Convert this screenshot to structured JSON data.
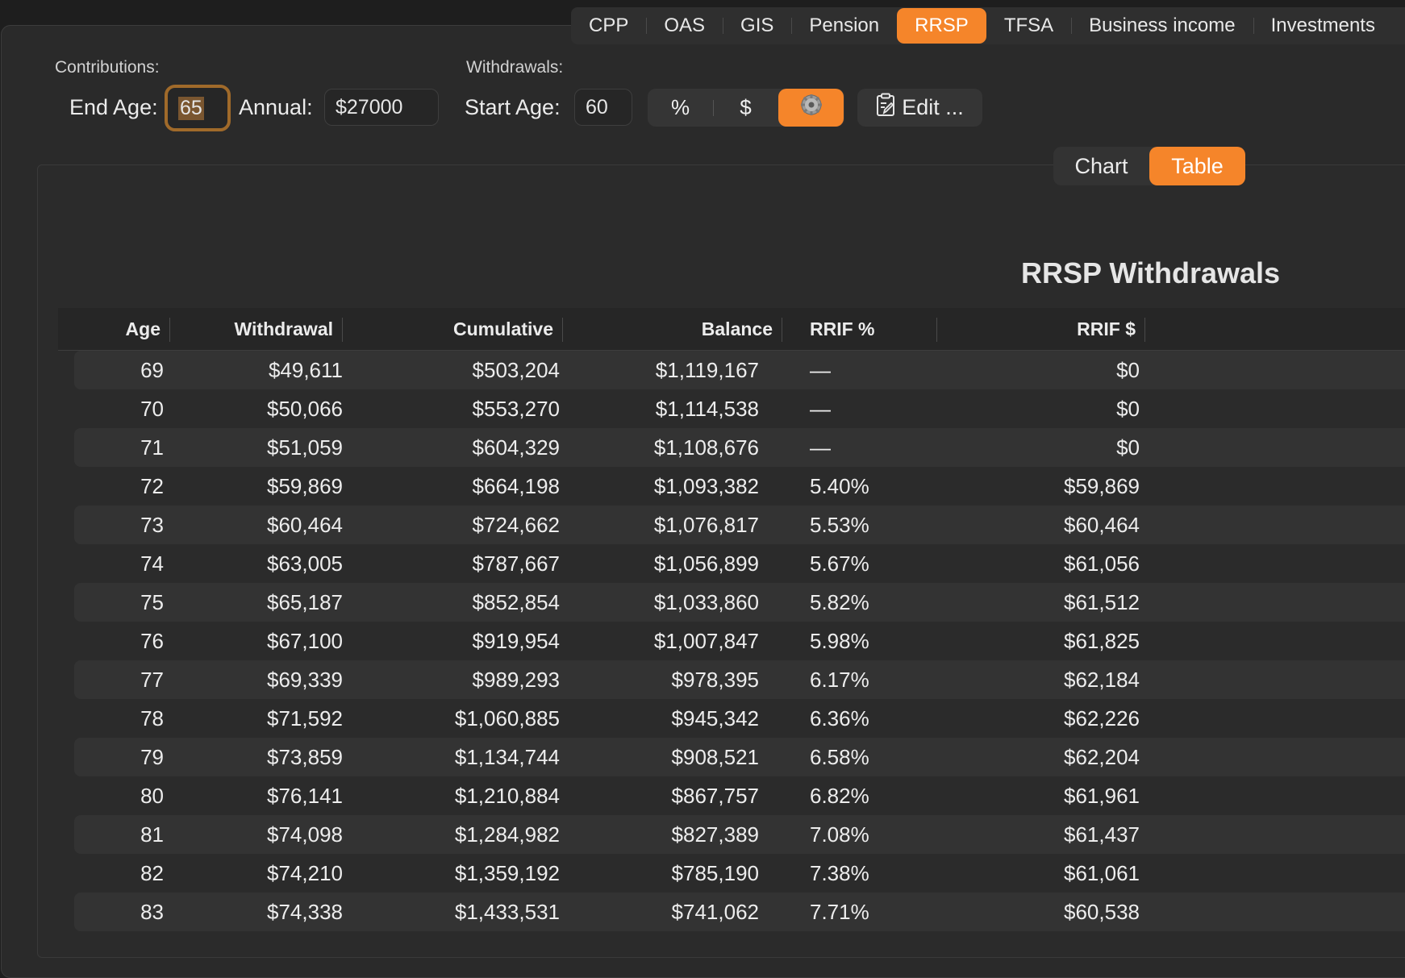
{
  "tabs": [
    "CPP",
    "OAS",
    "GIS",
    "Pension",
    "RRSP",
    "TFSA",
    "Business income",
    "Investments"
  ],
  "active_tab": "RRSP",
  "contributions": {
    "section_label": "Contributions:",
    "end_age_label": "End Age:",
    "end_age_value": "65",
    "annual_label": "Annual:",
    "annual_value": "$27000"
  },
  "withdrawals": {
    "section_label": "Withdrawals:",
    "start_age_label": "Start Age:",
    "start_age_value": "60",
    "mode_options": [
      "%",
      "$",
      "gear-icon"
    ],
    "active_mode": "gear-icon",
    "edit_label": "Edit ..."
  },
  "view_toggle": {
    "chart_label": "Chart",
    "table_label": "Table",
    "active": "Table"
  },
  "table": {
    "title": "RRSP Withdrawals",
    "columns": [
      "Age",
      "Withdrawal",
      "Cumulative",
      "Balance",
      "RRIF %",
      "RRIF $"
    ],
    "rows": [
      [
        "69",
        "$49,611",
        "$503,204",
        "$1,119,167",
        "—",
        "$0"
      ],
      [
        "70",
        "$50,066",
        "$553,270",
        "$1,114,538",
        "—",
        "$0"
      ],
      [
        "71",
        "$51,059",
        "$604,329",
        "$1,108,676",
        "—",
        "$0"
      ],
      [
        "72",
        "$59,869",
        "$664,198",
        "$1,093,382",
        "5.40%",
        "$59,869"
      ],
      [
        "73",
        "$60,464",
        "$724,662",
        "$1,076,817",
        "5.53%",
        "$60,464"
      ],
      [
        "74",
        "$63,005",
        "$787,667",
        "$1,056,899",
        "5.67%",
        "$61,056"
      ],
      [
        "75",
        "$65,187",
        "$852,854",
        "$1,033,860",
        "5.82%",
        "$61,512"
      ],
      [
        "76",
        "$67,100",
        "$919,954",
        "$1,007,847",
        "5.98%",
        "$61,825"
      ],
      [
        "77",
        "$69,339",
        "$989,293",
        "$978,395",
        "6.17%",
        "$62,184"
      ],
      [
        "78",
        "$71,592",
        "$1,060,885",
        "$945,342",
        "6.36%",
        "$62,226"
      ],
      [
        "79",
        "$73,859",
        "$1,134,744",
        "$908,521",
        "6.58%",
        "$62,204"
      ],
      [
        "80",
        "$76,141",
        "$1,210,884",
        "$867,757",
        "6.82%",
        "$61,961"
      ],
      [
        "81",
        "$74,098",
        "$1,284,982",
        "$827,389",
        "7.08%",
        "$61,437"
      ],
      [
        "82",
        "$74,210",
        "$1,359,192",
        "$785,190",
        "7.38%",
        "$61,061"
      ],
      [
        "83",
        "$74,338",
        "$1,433,531",
        "$741,062",
        "7.71%",
        "$60,538"
      ]
    ]
  },
  "colors": {
    "accent": "#f5852a",
    "background": "#1e1e1e",
    "panel": "#2a2a2a"
  }
}
